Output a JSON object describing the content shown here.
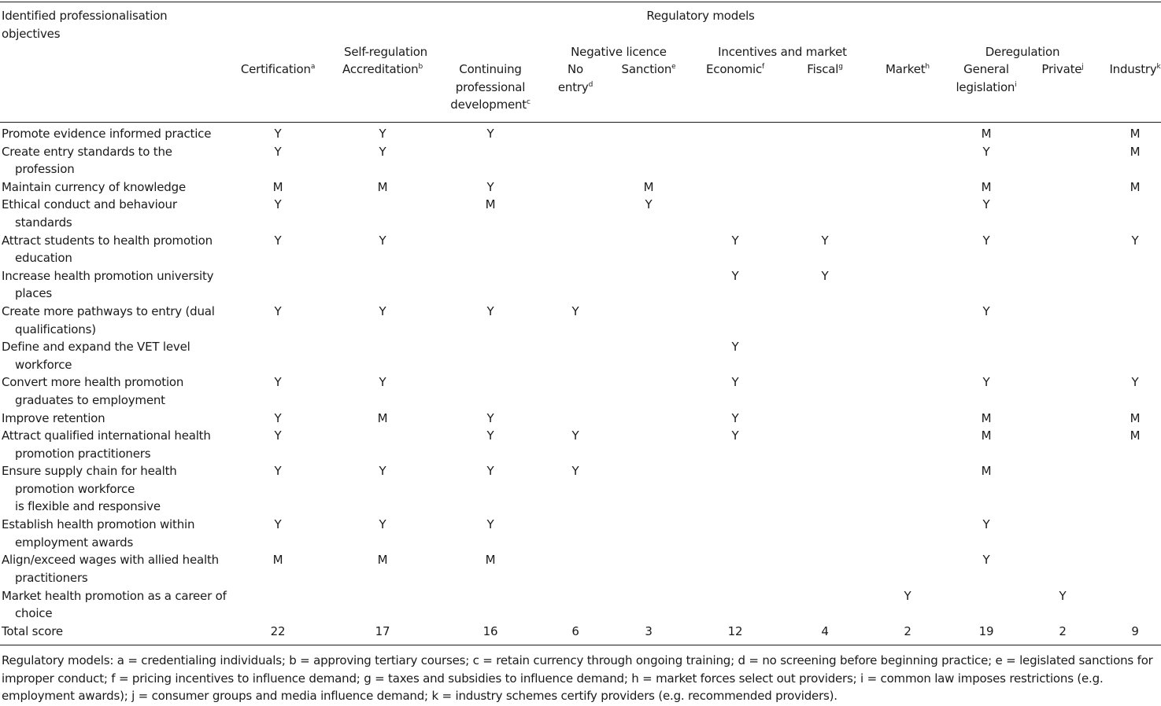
{
  "header": {
    "objectives_label": [
      "Identified professionalisation",
      "objectives"
    ],
    "regulatory_models": "Regulatory models",
    "groups": {
      "self_regulation": "Self-regulation",
      "negative_licence": "Negative licence",
      "incentives": "Incentives and market",
      "deregulation": "Deregulation"
    },
    "columns": [
      {
        "key": "certification",
        "lines": [
          "Certification"
        ],
        "sup": "a"
      },
      {
        "key": "accreditation",
        "lines": [
          "Accreditation"
        ],
        "sup": "b"
      },
      {
        "key": "cpd",
        "lines": [
          "Continuing",
          "professional",
          "development"
        ],
        "sup": "c"
      },
      {
        "key": "no_entry",
        "lines": [
          "No",
          "entry"
        ],
        "sup": "d"
      },
      {
        "key": "sanction",
        "lines": [
          "Sanction"
        ],
        "sup": "e"
      },
      {
        "key": "economic",
        "lines": [
          "Economic"
        ],
        "sup": "f"
      },
      {
        "key": "fiscal",
        "lines": [
          "Fiscal"
        ],
        "sup": "g"
      },
      {
        "key": "market",
        "lines": [
          "Market"
        ],
        "sup": "h"
      },
      {
        "key": "general_legislation",
        "lines": [
          "General",
          "legislation"
        ],
        "sup": "i"
      },
      {
        "key": "private",
        "lines": [
          "Private"
        ],
        "sup": "j"
      },
      {
        "key": "industry",
        "lines": [
          "Industry"
        ],
        "sup": "k"
      }
    ]
  },
  "rows": [
    {
      "label": [
        "Promote evidence informed practice"
      ],
      "values": [
        "Y",
        "Y",
        "Y",
        "",
        "",
        "",
        "",
        "",
        "M",
        "",
        "M"
      ]
    },
    {
      "label": [
        "Create entry standards to the",
        "profession"
      ],
      "values": [
        "Y",
        "Y",
        "",
        "",
        "",
        "",
        "",
        "",
        "Y",
        "",
        "M"
      ]
    },
    {
      "label": [
        "Maintain currency of knowledge"
      ],
      "values": [
        "M",
        "M",
        "Y",
        "",
        "M",
        "",
        "",
        "",
        "M",
        "",
        "M"
      ]
    },
    {
      "label": [
        "Ethical conduct and behaviour",
        "standards"
      ],
      "values": [
        "Y",
        "",
        "M",
        "",
        "Y",
        "",
        "",
        "",
        "Y",
        "",
        ""
      ]
    },
    {
      "label": [
        "Attract students to health promotion",
        "education"
      ],
      "values": [
        "Y",
        "Y",
        "",
        "",
        "",
        "Y",
        "Y",
        "",
        "Y",
        "",
        "Y"
      ]
    },
    {
      "label": [
        "Increase health promotion university",
        "places"
      ],
      "values": [
        "",
        "",
        "",
        "",
        "",
        "Y",
        "Y",
        "",
        "",
        "",
        ""
      ]
    },
    {
      "label": [
        "Create more pathways to entry (dual",
        "qualifications)"
      ],
      "values": [
        "Y",
        "Y",
        "Y",
        "Y",
        "",
        "",
        "",
        "",
        "Y",
        "",
        ""
      ]
    },
    {
      "label": [
        "Define and expand the VET level",
        "workforce"
      ],
      "values": [
        "",
        "",
        "",
        "",
        "",
        "Y",
        "",
        "",
        "",
        "",
        ""
      ]
    },
    {
      "label": [
        "Convert more health promotion",
        "graduates to employment"
      ],
      "values": [
        "Y",
        "Y",
        "",
        "",
        "",
        "Y",
        "",
        "",
        "Y",
        "",
        "Y"
      ]
    },
    {
      "label": [
        "Improve retention"
      ],
      "values": [
        "Y",
        "M",
        "Y",
        "",
        "",
        "Y",
        "",
        "",
        "M",
        "",
        "M"
      ]
    },
    {
      "label": [
        "Attract qualified international health",
        "promotion practitioners"
      ],
      "values": [
        "Y",
        "",
        "Y",
        "Y",
        "",
        "Y",
        "",
        "",
        "M",
        "",
        "M"
      ]
    },
    {
      "label": [
        "Ensure supply chain for health",
        "promotion workforce",
        "is flexible and responsive"
      ],
      "values": [
        "Y",
        "Y",
        "Y",
        "Y",
        "",
        "",
        "",
        "",
        "M",
        "",
        ""
      ]
    },
    {
      "label": [
        "Establish health promotion within",
        "employment awards"
      ],
      "values": [
        "Y",
        "Y",
        "Y",
        "",
        "",
        "",
        "",
        "",
        "Y",
        "",
        ""
      ]
    },
    {
      "label": [
        "Align/exceed wages with allied health",
        "practitioners"
      ],
      "values": [
        "M",
        "M",
        "M",
        "",
        "",
        "",
        "",
        "",
        "Y",
        "",
        ""
      ]
    },
    {
      "label": [
        "Market health promotion as a career of",
        "choice"
      ],
      "values": [
        "",
        "",
        "",
        "",
        "",
        "",
        "",
        "Y",
        "",
        "Y",
        ""
      ]
    }
  ],
  "total": {
    "label": "Total score",
    "values": [
      "22",
      "17",
      "16",
      "6",
      "3",
      "12",
      "4",
      "2",
      "19",
      "2",
      "9"
    ]
  },
  "footnote": "Regulatory models: a = credentialing individuals; b = approving tertiary courses; c = retain currency through ongoing training; d = no screening before beginning practice; e = legislated sanctions for improper conduct; f = pricing incentives to influence demand; g = taxes and subsidies to influence demand; h = market forces select out providers; i = common law imposes restrictions (e.g. employment awards); j = consumer groups and media influence demand; k = industry schemes certify providers (e.g. recommended providers)."
}
